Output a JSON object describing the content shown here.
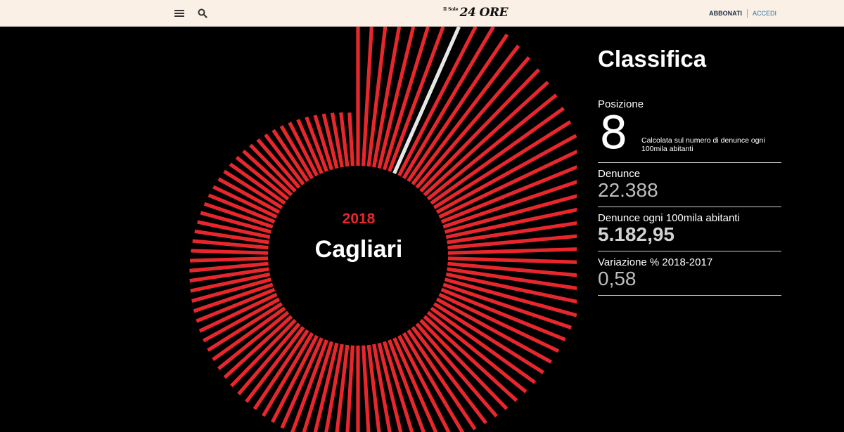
{
  "header": {
    "logo_small": "Il Sole",
    "logo_big": "24 ORE",
    "abbonati_label": "ABBONATI",
    "accedi_label": "ACCEDI"
  },
  "center": {
    "year": "2018",
    "city": "Cagliari"
  },
  "panel": {
    "title": "Classifica",
    "position_label": "Posizione",
    "position_value": "8",
    "position_note": "Calcolata sul numero di denunce ogni 100mila abitanti",
    "denunce_label": "Denunce",
    "denunce_value": "22.388",
    "rate_label": "Denunce ogni 100mila abitanti",
    "rate_value": "5.182,95",
    "variation_label": "Variazione % 2018-2017",
    "variation_value": "0,58"
  },
  "chart_data": {
    "type": "bar",
    "layout": "radial",
    "bar_count": 106,
    "highlighted_rank": 8,
    "colors": {
      "bar": "#e8272c",
      "highlight": "#e6e6e6",
      "background": "#000000"
    }
  }
}
